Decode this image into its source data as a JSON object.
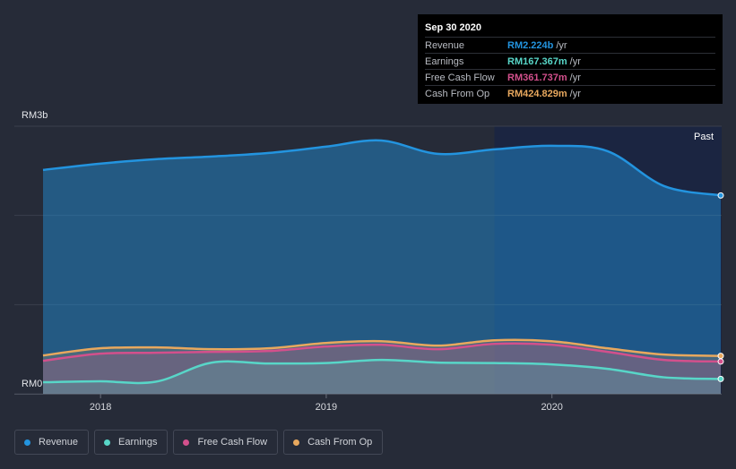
{
  "chart_data": {
    "type": "area",
    "y_top_label": "RM3b",
    "y_bottom_label": "RM0",
    "ylim": [
      0,
      3000
    ],
    "x_ticks": [
      "2018",
      "2019",
      "2020"
    ],
    "past_label": "Past",
    "series": [
      {
        "name": "Revenue",
        "color": "#2394df",
        "x": [
          "2017-09-30",
          "2017-12-31",
          "2018-03-31",
          "2018-06-30",
          "2018-09-30",
          "2018-12-31",
          "2019-03-31",
          "2019-06-30",
          "2019-09-30",
          "2019-12-31",
          "2020-03-31",
          "2020-06-30",
          "2020-09-30"
        ],
        "values": [
          2510,
          2580,
          2630,
          2660,
          2700,
          2770,
          2840,
          2690,
          2740,
          2780,
          2720,
          2330,
          2224
        ]
      },
      {
        "name": "Cash From Op",
        "color": "#e8a85e",
        "x": [
          "2017-09-30",
          "2017-12-31",
          "2018-03-31",
          "2018-06-30",
          "2018-09-30",
          "2018-12-31",
          "2019-03-31",
          "2019-06-30",
          "2019-09-30",
          "2019-12-31",
          "2020-03-31",
          "2020-06-30",
          "2020-09-30"
        ],
        "values": [
          430,
          510,
          520,
          500,
          510,
          570,
          590,
          540,
          600,
          590,
          510,
          440,
          425
        ]
      },
      {
        "name": "Free Cash Flow",
        "color": "#d3508c",
        "x": [
          "2017-09-30",
          "2017-12-31",
          "2018-03-31",
          "2018-06-30",
          "2018-09-30",
          "2018-12-31",
          "2019-03-31",
          "2019-06-30",
          "2019-09-30",
          "2019-12-31",
          "2020-03-31",
          "2020-06-30",
          "2020-09-30"
        ],
        "values": [
          370,
          450,
          460,
          470,
          480,
          530,
          550,
          500,
          560,
          550,
          470,
          380,
          362
        ]
      },
      {
        "name": "Earnings",
        "color": "#58d6c8",
        "x": [
          "2017-09-30",
          "2017-12-31",
          "2018-03-31",
          "2018-06-30",
          "2018-09-30",
          "2018-12-31",
          "2019-03-31",
          "2019-06-30",
          "2019-09-30",
          "2019-12-31",
          "2020-03-31",
          "2020-06-30",
          "2020-09-30"
        ],
        "values": [
          130,
          140,
          135,
          350,
          340,
          345,
          380,
          350,
          345,
          330,
          280,
          185,
          167
        ]
      }
    ]
  },
  "tooltip": {
    "date": "Sep 30 2020",
    "rows": [
      {
        "label": "Revenue",
        "value": "RM2.224b",
        "unit": "/yr",
        "color": "#2394df"
      },
      {
        "label": "Earnings",
        "value": "RM167.367m",
        "unit": "/yr",
        "color": "#58d6c8"
      },
      {
        "label": "Free Cash Flow",
        "value": "RM361.737m",
        "unit": "/yr",
        "color": "#d3508c"
      },
      {
        "label": "Cash From Op",
        "value": "RM424.829m",
        "unit": "/yr",
        "color": "#e8a85e"
      }
    ]
  },
  "legend": [
    {
      "label": "Revenue",
      "color": "#2394df"
    },
    {
      "label": "Earnings",
      "color": "#58d6c8"
    },
    {
      "label": "Free Cash Flow",
      "color": "#d3508c"
    },
    {
      "label": "Cash From Op",
      "color": "#e8a85e"
    }
  ]
}
